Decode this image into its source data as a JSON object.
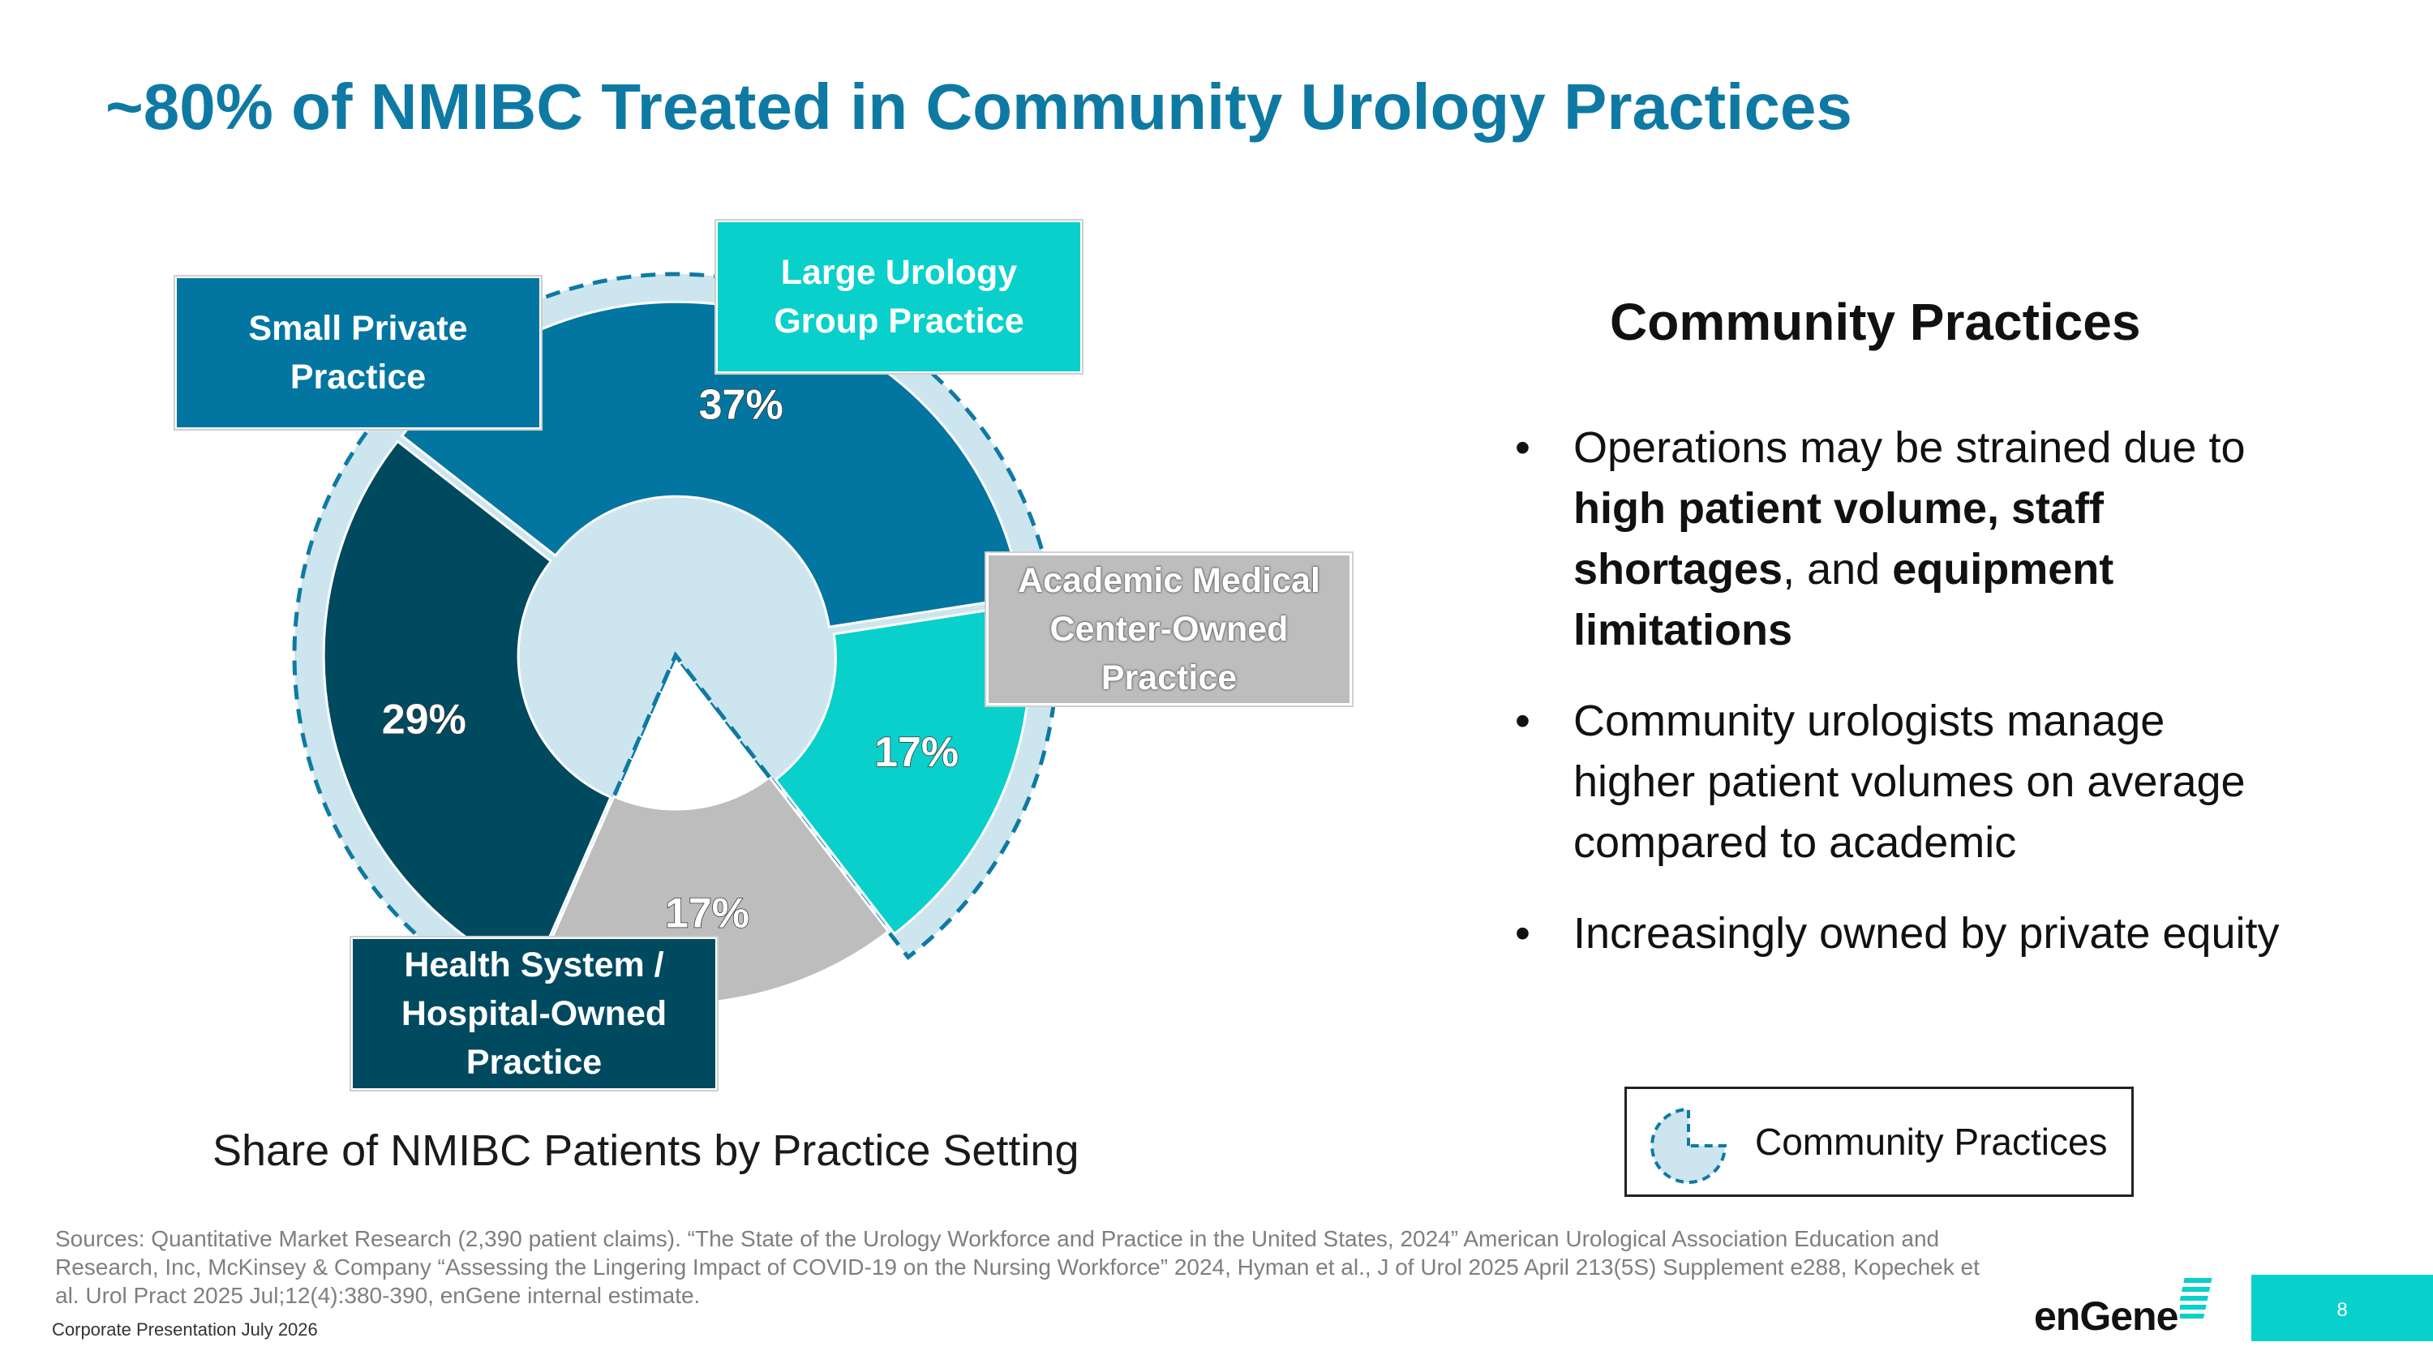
{
  "title": "~80% of NMIBC Treated in Community Urology Practices",
  "chart_data": {
    "type": "pie",
    "categories": [
      "Small Private Practice",
      "Large Urology Group Practice",
      "Academic Medical Center-Owned Practice",
      "Health System / Hospital-Owned Practice"
    ],
    "values": [
      37,
      17,
      17,
      29
    ],
    "value_labels": [
      "37%",
      "17%",
      "17%",
      "29%"
    ],
    "label_lines": [
      "Small Private\nPractice",
      "Large Urology\nGroup Practice",
      "Academic Medical\nCenter-Owned\nPractice",
      "Health System /\nHospital-Owned\nPractice"
    ],
    "colors": [
      "#0276a0",
      "#0ad0cc",
      "#bdbdbd",
      "#004a60"
    ],
    "highlight": {
      "name": "Community Practices",
      "includes": [
        "Small Private Practice",
        "Large Urology Group Practice",
        "Health System / Hospital-Owned Practice"
      ],
      "color": "#cde5ee",
      "outline_color": "#0e7aa3"
    },
    "caption": "Share of NMIBC Patients by Practice Setting"
  },
  "side_panel": {
    "heading": "Community Practices",
    "bullet_marker": "•",
    "bullets": [
      [
        {
          "text": "Operations may be strained due to ",
          "bold": false
        },
        {
          "text": "high patient volume, staff shortages",
          "bold": true
        },
        {
          "text": ", and ",
          "bold": false
        },
        {
          "text": "equipment limitations",
          "bold": true
        }
      ],
      [
        {
          "text": "Community urologists manage higher patient volumes on average compared to academic",
          "bold": false
        }
      ],
      [
        {
          "text": "Increasingly owned by private equity",
          "bold": false
        }
      ]
    ]
  },
  "legend": {
    "label": "Community Practices",
    "icon": "dashed-pie-icon"
  },
  "sources": "Sources: Quantitative Market Research (2,390 patient claims). “The State of the Urology Workforce and Practice in the United States, 2024” American Urological Association Education and Research, Inc, McKinsey & Company “Assessing the Lingering Impact of COVID-19 on the Nursing Workforce” 2024, Hyman et al., J of Urol 2025 April 213(5S) Supplement e288, Kopechek et al. Urol Pract 2025 Jul;12(4):380-390, enGene internal estimate.",
  "footer": {
    "note": "Corporate Presentation July 2026",
    "logo_text": "enGene",
    "page_number": "8"
  },
  "colors": {
    "title": "#0e7aa3",
    "accent": "#0ad0cc"
  }
}
